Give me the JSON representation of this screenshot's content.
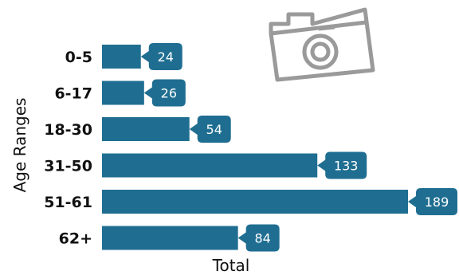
{
  "chart_data": {
    "type": "bar",
    "orientation": "horizontal",
    "categories": [
      "0-5",
      "6-17",
      "18-30",
      "31-50",
      "51-61",
      "62+"
    ],
    "values": [
      24,
      26,
      54,
      133,
      189,
      84
    ],
    "xlabel": "Total",
    "ylabel": "Age Ranges",
    "xlim": [
      0,
      189
    ],
    "grid": false,
    "legend": "none",
    "data_labels": "callout",
    "colors": {
      "bar": "#1f6e91",
      "label_bg": "#1f6e91",
      "label_text": "#ffffff"
    }
  },
  "decoration": {
    "icon": "camera-icon",
    "color": "#9a9a9a"
  }
}
